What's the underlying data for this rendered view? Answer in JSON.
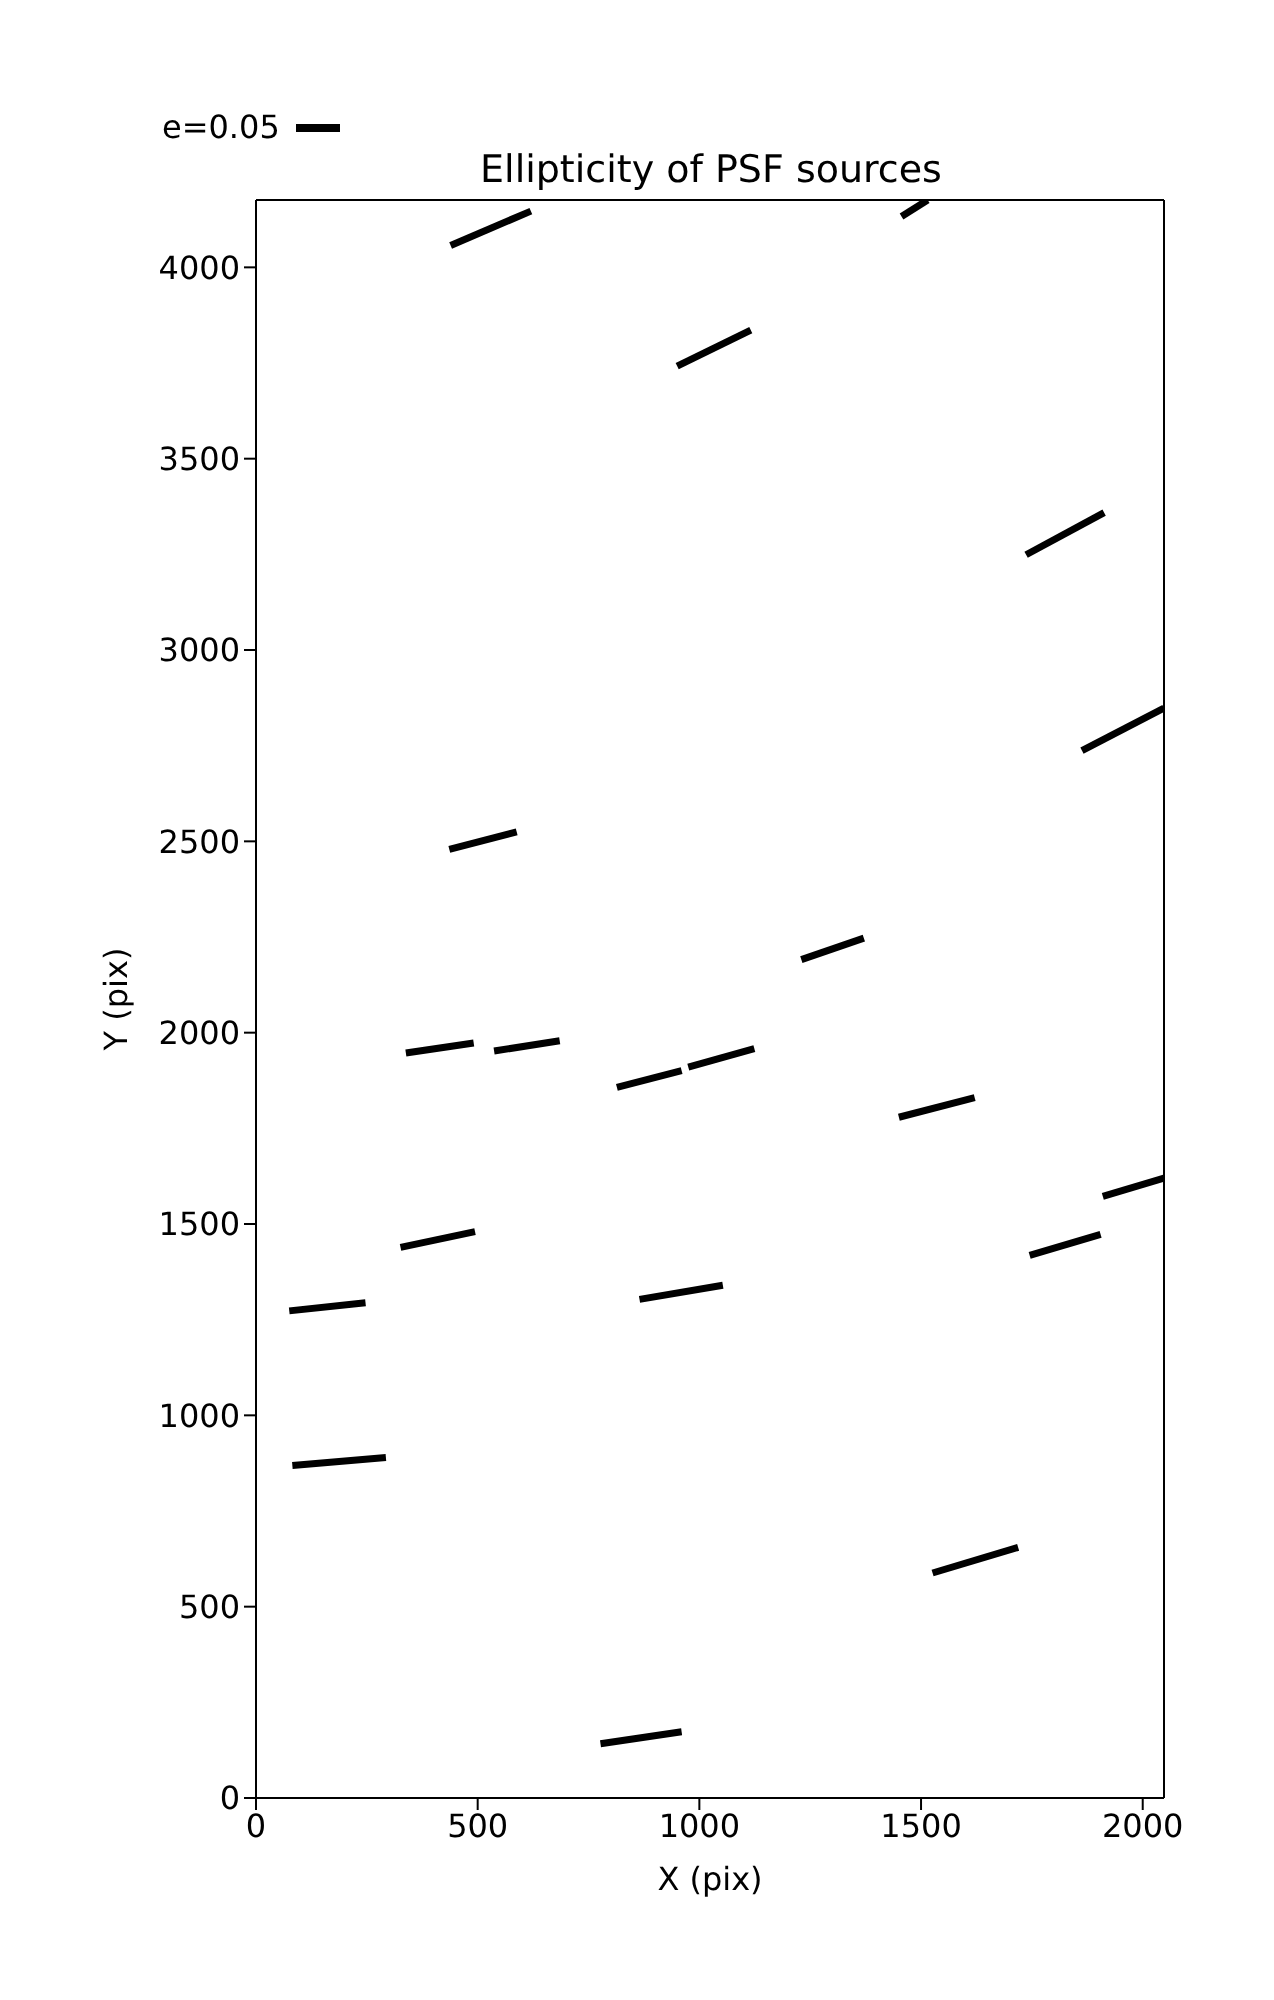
{
  "chart_data": {
    "type": "line",
    "title": "Ellipticity of PSF sources",
    "xlabel": "X (pix)",
    "ylabel": "Y (pix)",
    "xlim": [
      0,
      2048
    ],
    "ylim": [
      0,
      4176
    ],
    "xticks": [
      0,
      500,
      1000,
      1500,
      2000
    ],
    "yticks": [
      0,
      500,
      1000,
      1500,
      2000,
      2500,
      3000,
      3500,
      4000
    ],
    "grid": false,
    "legend": "top left",
    "marker": "none",
    "line_style": "solid",
    "series": [
      {
        "name": "e=0.05",
        "color": "#000000",
        "x": [
          777,
          960
        ],
        "values": [
          142,
          173
        ]
      },
      {
        "color": "#000000",
        "x": [
          1526,
          1719
        ],
        "values": [
          588,
          655
        ]
      },
      {
        "color": "#000000",
        "x": [
          82,
          293
        ],
        "values": [
          869,
          890
        ]
      },
      {
        "color": "#000000",
        "x": [
          75,
          247
        ],
        "values": [
          1273,
          1294
        ]
      },
      {
        "color": "#000000",
        "x": [
          326,
          494
        ],
        "values": [
          1439,
          1480
        ]
      },
      {
        "color": "#000000",
        "x": [
          865,
          1053
        ],
        "values": [
          1303,
          1340
        ]
      },
      {
        "color": "#000000",
        "x": [
          1745,
          1905
        ],
        "values": [
          1418,
          1473
        ]
      },
      {
        "color": "#000000",
        "x": [
          1910,
          2048
        ],
        "values": [
          1572,
          1620
        ]
      },
      {
        "color": "#000000",
        "x": [
          338,
          491
        ],
        "values": [
          1947,
          1973
        ]
      },
      {
        "color": "#000000",
        "x": [
          537,
          685
        ],
        "values": [
          1952,
          1979
        ]
      },
      {
        "color": "#000000",
        "x": [
          814,
          960
        ],
        "values": [
          1857,
          1901
        ]
      },
      {
        "color": "#000000",
        "x": [
          975,
          1124
        ],
        "values": [
          1910,
          1958
        ]
      },
      {
        "color": "#000000",
        "x": [
          1450,
          1621
        ],
        "values": [
          1779,
          1830
        ]
      },
      {
        "color": "#000000",
        "x": [
          1230,
          1371
        ],
        "values": [
          2191,
          2247
        ]
      },
      {
        "color": "#000000",
        "x": [
          436,
          588
        ],
        "values": [
          2479,
          2525
        ]
      },
      {
        "color": "#000000",
        "x": [
          1863,
          2048
        ],
        "values": [
          2737,
          2848
        ]
      },
      {
        "color": "#000000",
        "x": [
          1737,
          1913
        ],
        "values": [
          3249,
          3359
        ]
      },
      {
        "color": "#000000",
        "x": [
          950,
          1116
        ],
        "values": [
          3742,
          3836
        ]
      },
      {
        "color": "#000000",
        "x": [
          439,
          620
        ],
        "values": [
          4057,
          4147
        ]
      },
      {
        "color": "#000000",
        "x": [
          1456,
          1515
        ],
        "values": [
          4133,
          4176
        ]
      }
    ]
  }
}
